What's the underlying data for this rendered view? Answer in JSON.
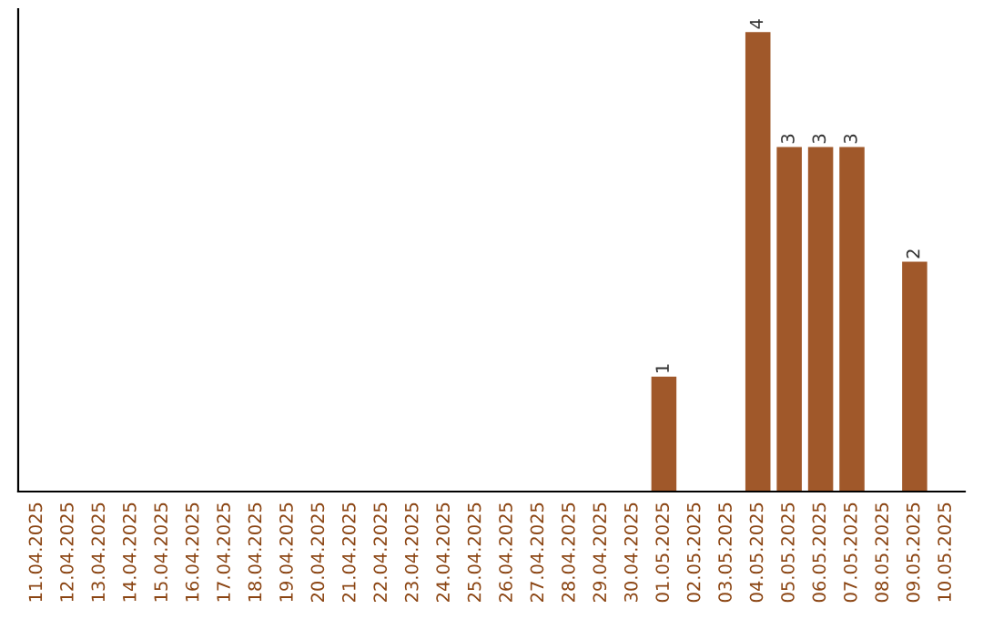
{
  "chart_data": {
    "type": "bar",
    "categories": [
      "11.04.2025",
      "12.04.2025",
      "13.04.2025",
      "14.04.2025",
      "15.04.2025",
      "16.04.2025",
      "17.04.2025",
      "18.04.2025",
      "19.04.2025",
      "20.04.2025",
      "21.04.2025",
      "22.04.2025",
      "23.04.2025",
      "24.04.2025",
      "25.04.2025",
      "26.04.2025",
      "27.04.2025",
      "28.04.2025",
      "29.04.2025",
      "30.04.2025",
      "01.05.2025",
      "02.05.2025",
      "03.05.2025",
      "04.05.2025",
      "05.05.2025",
      "06.05.2025",
      "07.05.2025",
      "08.05.2025",
      "09.05.2025",
      "10.05.2025"
    ],
    "values": [
      null,
      null,
      null,
      null,
      null,
      null,
      null,
      null,
      null,
      null,
      null,
      null,
      null,
      null,
      null,
      null,
      null,
      null,
      null,
      null,
      1,
      null,
      null,
      4,
      3,
      3,
      3,
      null,
      2,
      null
    ],
    "data_labels": true,
    "color": "#a0582a",
    "tick_labels": "x",
    "grid": false
  }
}
